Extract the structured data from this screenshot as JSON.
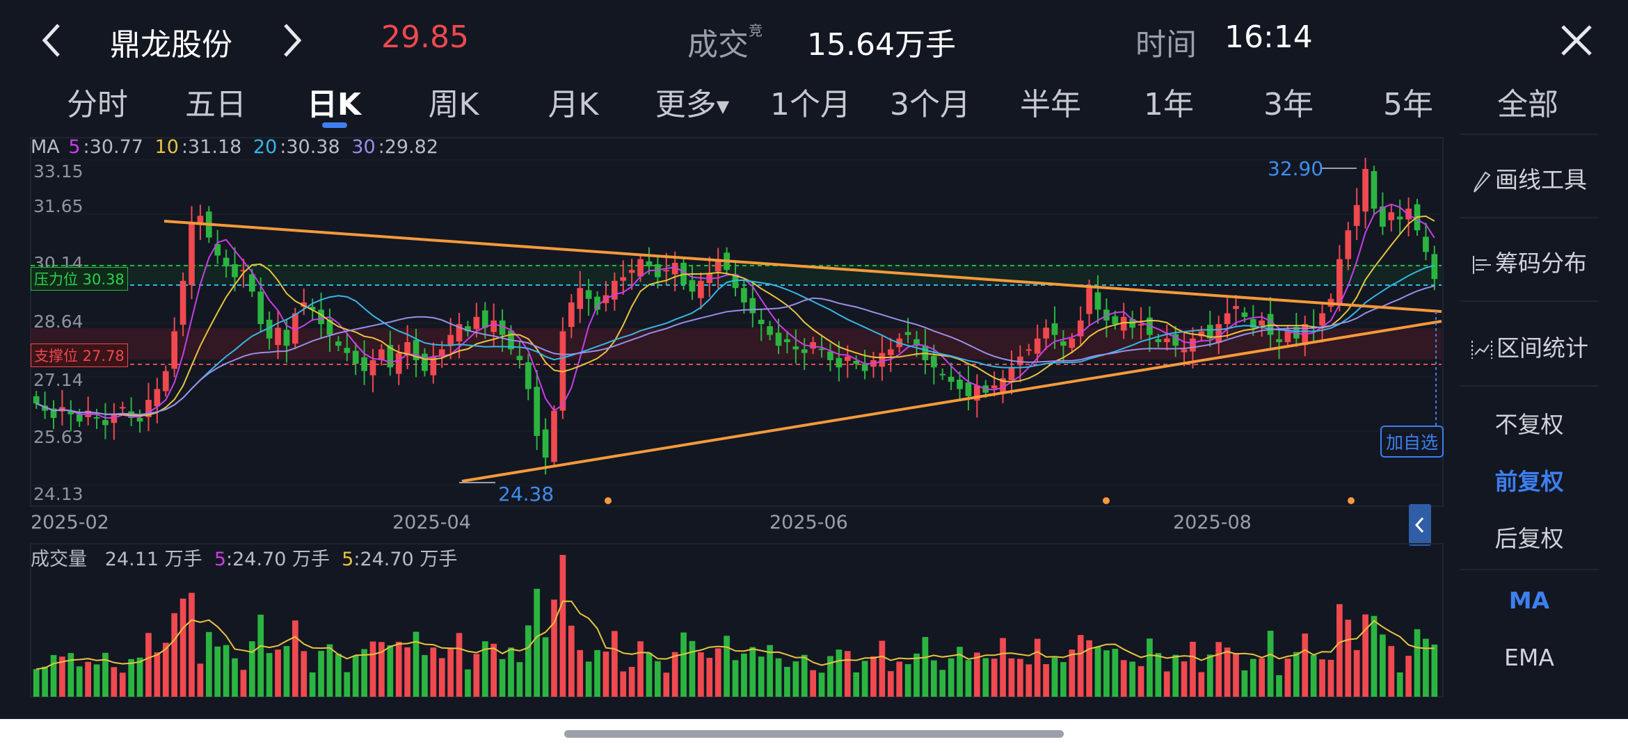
{
  "header": {
    "stock_name": "鼎龙股份",
    "price": "29.85",
    "volume_label": "成交",
    "volume_tag": "竞",
    "volume_value": "15.64万手",
    "time_label": "时间",
    "time_value": "16:14",
    "price_color": "#f0494f"
  },
  "tabs": [
    {
      "label": "分时",
      "active": false
    },
    {
      "label": "五日",
      "active": false
    },
    {
      "label": "日K",
      "active": true
    },
    {
      "label": "周K",
      "active": false
    },
    {
      "label": "月K",
      "active": false
    },
    {
      "label": "更多",
      "active": false
    },
    {
      "label": "1个月",
      "active": false
    },
    {
      "label": "3个月",
      "active": false
    },
    {
      "label": "半年",
      "active": false
    },
    {
      "label": "1年",
      "active": false
    },
    {
      "label": "3年",
      "active": false
    },
    {
      "label": "5年",
      "active": false
    },
    {
      "label": "全部",
      "active": false
    }
  ],
  "ma_legend": {
    "prefix": "MA",
    "ma5_key": "5",
    "ma5": ":30.77",
    "ma10_key": "10",
    "ma10": ":31.18",
    "ma20_key": "20",
    "ma20": ":30.38",
    "ma30_key": "30",
    "ma30": ":29.82",
    "colors": {
      "ma5": "#c93fe8",
      "ma10": "#e8c43f",
      "ma20": "#36b7e8",
      "ma30": "#9b8fe8"
    }
  },
  "levels": {
    "resistance_label": "压力位 30.38",
    "support_label": "支撑位 27.78",
    "high_label": "32.90",
    "low_label": "24.38"
  },
  "y_ticks": [
    "33.15",
    "31.65",
    "30.14",
    "28.64",
    "27.14",
    "25.63",
    "24.13"
  ],
  "x_ticks": [
    "2025-02",
    "2025-04",
    "2025-06",
    "2025-08"
  ],
  "volume_legend": {
    "label": "成交量",
    "value": "24.11 万手",
    "ma5a_key": "5",
    "ma5a": ":24.70 万手",
    "ma5b_key": "5",
    "ma5b": ":24.70 万手"
  },
  "add_favorite": "加自选",
  "side_panel": {
    "draw_tool": "画线工具",
    "chip_dist": "筹码分布",
    "interval_stats": "区间统计",
    "no_adjust": "不复权",
    "forward_adjust": "前复权",
    "backward_adjust": "后复权",
    "ma": "MA",
    "ema": "EMA"
  },
  "colors": {
    "up": "#f0494f",
    "down": "#2bb540",
    "bg": "#131722",
    "accent": "#3d7ff0",
    "trend": "#f79a3a"
  },
  "chart_data": {
    "type": "candlestick",
    "y_range": [
      24.13,
      33.15
    ],
    "x_tick_labels": [
      "2025-02",
      "2025-04",
      "2025-06",
      "2025-08"
    ],
    "candles_close": [
      26.4,
      26.2,
      26.0,
      26.3,
      26.1,
      25.9,
      26.2,
      26.0,
      25.8,
      26.1,
      26.3,
      26.0,
      25.9,
      26.5,
      26.8,
      27.3,
      28.4,
      29.8,
      31.4,
      31.6,
      31.0,
      30.5,
      30.2,
      29.9,
      30.1,
      29.5,
      28.6,
      28.2,
      28.5,
      28.0,
      28.9,
      29.2,
      29.0,
      28.6,
      28.3,
      28.0,
      27.8,
      27.5,
      27.3,
      27.6,
      27.9,
      27.4,
      27.8,
      28.1,
      27.6,
      27.3,
      27.7,
      27.9,
      28.3,
      28.6,
      28.4,
      28.8,
      28.5,
      28.7,
      28.3,
      27.9,
      27.6,
      26.8,
      25.5,
      24.9,
      26.2,
      28.4,
      29.2,
      29.6,
      29.3,
      29.0,
      29.4,
      29.8,
      29.9,
      30.1,
      30.4,
      30.2,
      29.9,
      30.1,
      30.3,
      29.7,
      29.5,
      29.8,
      30.0,
      30.4,
      30.1,
      29.6,
      29.2,
      28.9,
      28.6,
      28.3,
      28.0,
      28.1,
      27.9,
      27.8,
      28.1,
      27.9,
      27.6,
      27.4,
      27.7,
      27.5,
      27.3,
      27.6,
      27.8,
      27.9,
      28.2,
      28.3,
      28.0,
      27.6,
      27.4,
      27.2,
      27.0,
      26.8,
      26.6,
      26.9,
      26.7,
      26.9,
      27.1,
      27.4,
      27.7,
      27.9,
      28.2,
      28.5,
      28.3,
      28.0,
      28.2,
      28.7,
      29.6,
      29.0,
      28.7,
      28.6,
      28.8,
      28.5,
      28.6,
      28.3,
      28.1,
      28.2,
      28.0,
      27.9,
      28.2,
      28.4,
      28.2,
      28.6,
      28.9,
      29.1,
      28.8,
      28.5,
      28.7,
      28.3,
      28.1,
      28.4,
      28.2,
      28.6,
      28.5,
      28.9,
      29.3,
      30.4,
      31.2,
      31.9,
      32.9,
      31.8,
      31.3,
      31.7,
      31.5,
      31.8,
      31.2,
      30.6,
      29.85
    ]
  }
}
